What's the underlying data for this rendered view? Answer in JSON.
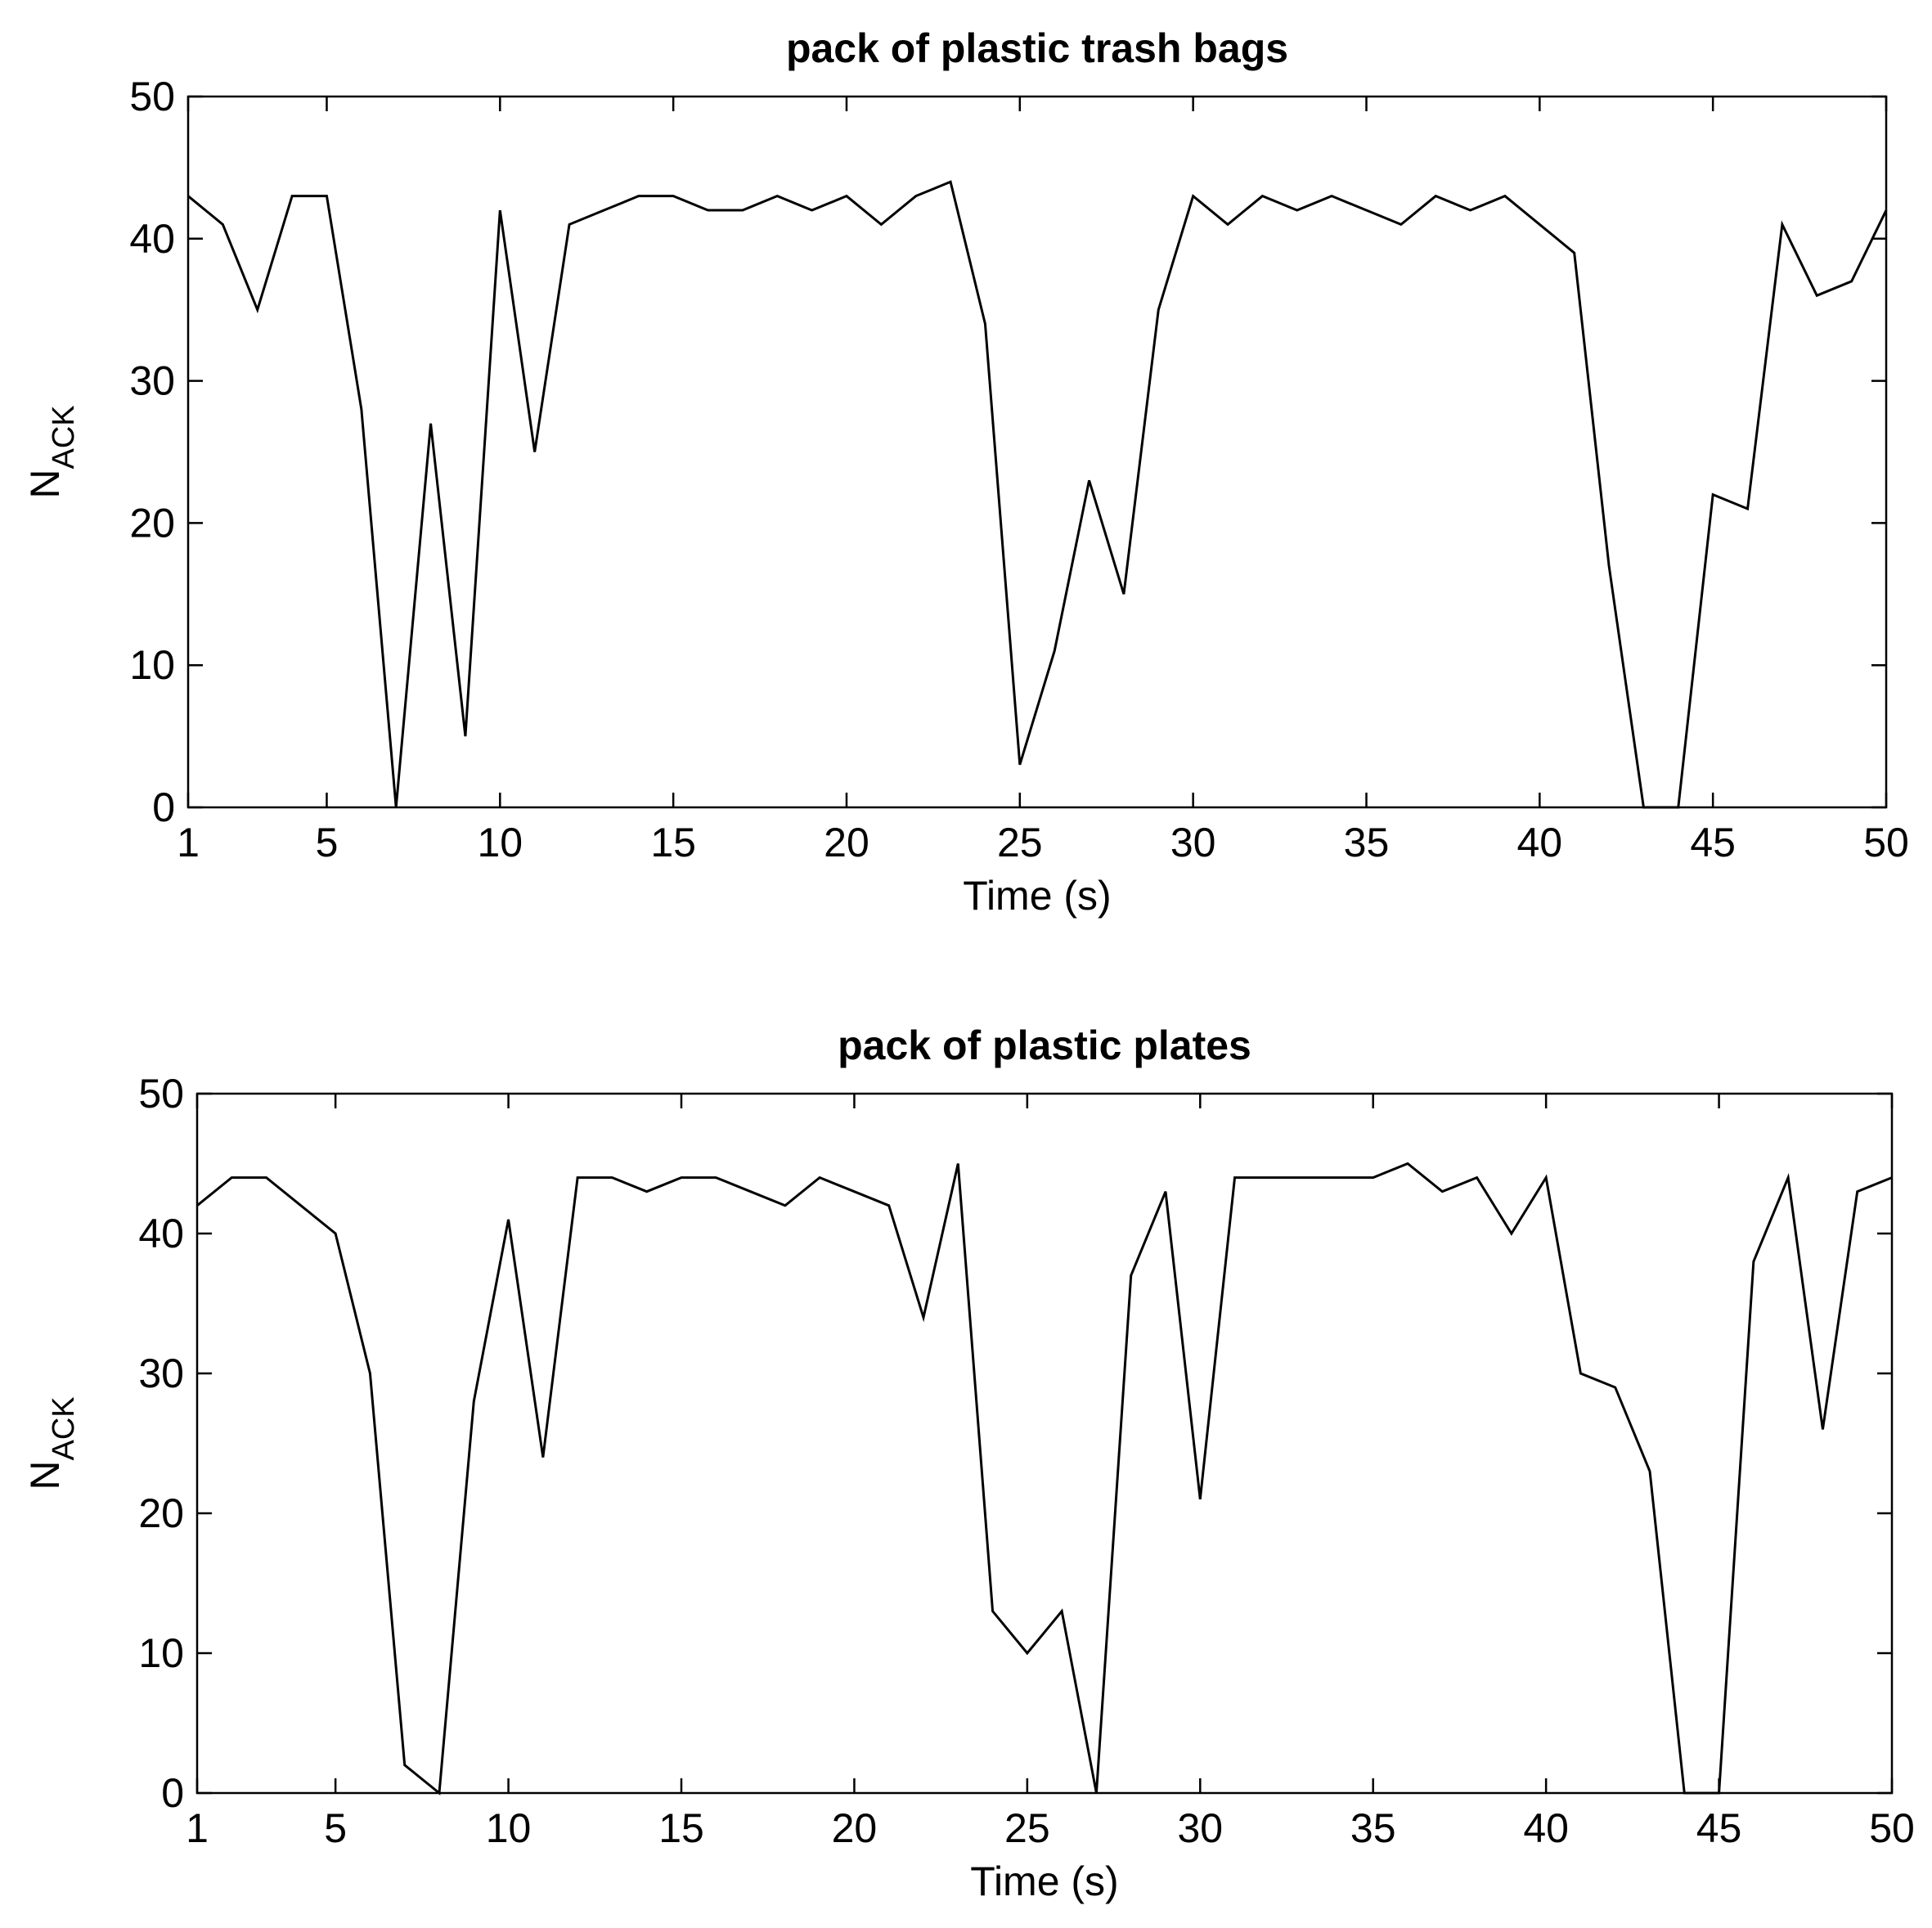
{
  "chart_data": [
    {
      "type": "line",
      "title": "pack of plastic trash bags",
      "xlabel": "Time (s)",
      "ylabel": {
        "text": "N",
        "subscript": "ACK"
      },
      "x": [
        1,
        2,
        3,
        4,
        5,
        6,
        7,
        8,
        9,
        10,
        11,
        12,
        13,
        14,
        15,
        16,
        17,
        18,
        19,
        20,
        21,
        22,
        23,
        24,
        25,
        26,
        27,
        28,
        29,
        30,
        31,
        32,
        33,
        34,
        35,
        36,
        37,
        38,
        39,
        40,
        41,
        42,
        43,
        44,
        45,
        46,
        47,
        48,
        49,
        50
      ],
      "series": [
        {
          "color": "#000000",
          "values": [
            43,
            41,
            35,
            43,
            43,
            28,
            0,
            27,
            5,
            42,
            25,
            41,
            42,
            43,
            43,
            42,
            42,
            43,
            42,
            43,
            41,
            43,
            44,
            34,
            3,
            11,
            23,
            15,
            35,
            43,
            41,
            43,
            42,
            43,
            42,
            41,
            43,
            42,
            43,
            41,
            39,
            17,
            0,
            0,
            22,
            21,
            41,
            36,
            37,
            42
          ]
        }
      ],
      "xlim": [
        1,
        50
      ],
      "xticks": [
        1,
        5,
        10,
        15,
        20,
        25,
        30,
        35,
        40,
        45,
        50
      ],
      "ylim": [
        0,
        50
      ],
      "yticks": [
        0,
        10,
        20,
        30,
        40,
        50
      ],
      "grid": false
    },
    {
      "type": "line",
      "title": "pack of plastic plates",
      "xlabel": "Time (s)",
      "ylabel": {
        "text": "N",
        "subscript": "ACK"
      },
      "x": [
        1,
        2,
        3,
        4,
        5,
        6,
        7,
        8,
        9,
        10,
        11,
        12,
        13,
        14,
        15,
        16,
        17,
        18,
        19,
        20,
        21,
        22,
        23,
        24,
        25,
        26,
        27,
        28,
        29,
        30,
        31,
        32,
        33,
        34,
        35,
        36,
        37,
        38,
        39,
        40,
        41,
        42,
        43,
        44,
        45,
        46,
        47,
        48,
        49,
        50
      ],
      "series": [
        {
          "color": "#000000",
          "values": [
            42,
            44,
            44,
            42,
            40,
            30,
            2,
            0,
            28,
            41,
            24,
            44,
            44,
            43,
            44,
            44,
            43,
            42,
            44,
            43,
            42,
            34,
            45,
            13,
            10,
            13,
            0,
            37,
            43,
            21,
            44,
            44,
            44,
            44,
            44,
            45,
            43,
            44,
            40,
            44,
            30,
            29,
            23,
            0,
            0,
            38,
            44,
            26,
            43,
            44
          ]
        }
      ],
      "xlim": [
        1,
        50
      ],
      "xticks": [
        1,
        5,
        10,
        15,
        20,
        25,
        30,
        35,
        40,
        45,
        50
      ],
      "ylim": [
        0,
        50
      ],
      "yticks": [
        0,
        10,
        20,
        30,
        40,
        50
      ],
      "grid": false
    }
  ]
}
